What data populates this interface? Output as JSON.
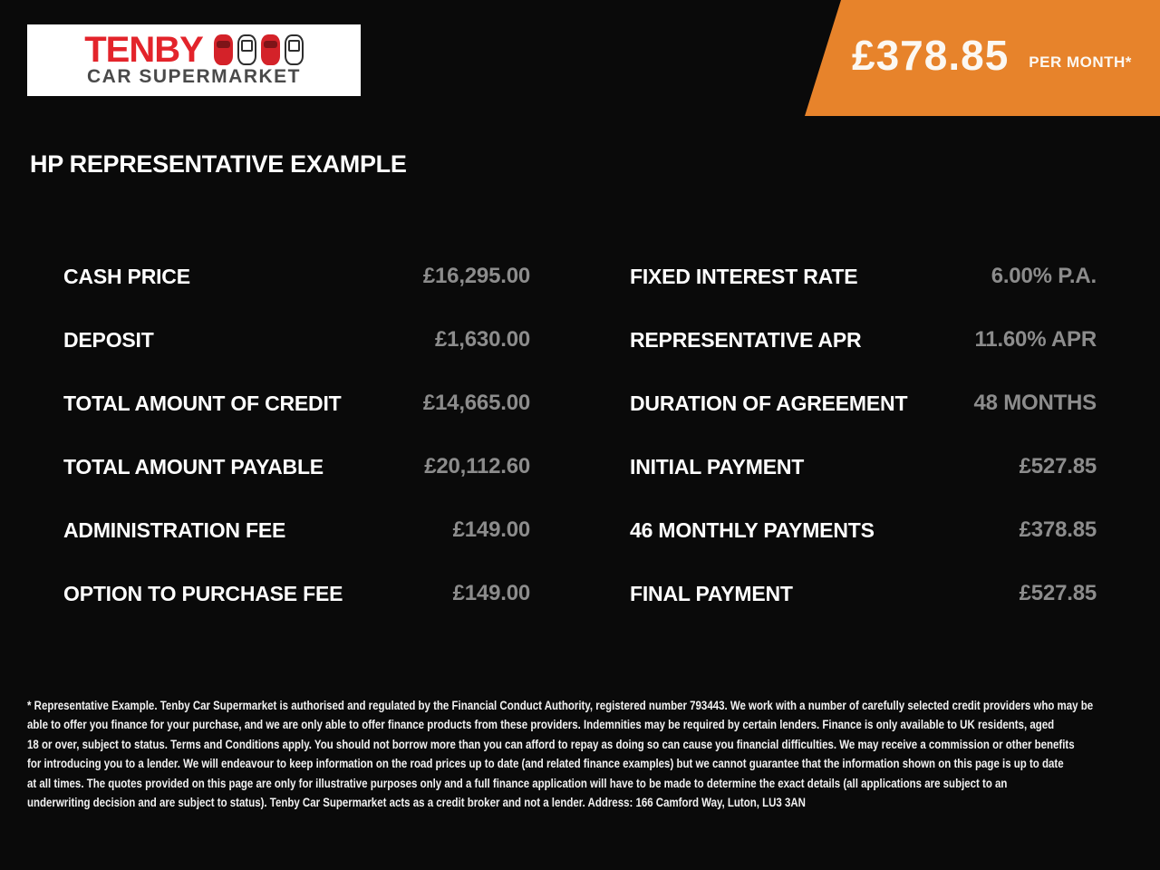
{
  "colors": {
    "page_background": "#0a0a0a",
    "banner_orange": "#e7832b",
    "brand_red": "#e3242b",
    "value_gray": "#8c8c8c",
    "logo_sub_gray": "#4a4a4a"
  },
  "header": {
    "logo": {
      "line1": "TENBY",
      "line2": "CAR SUPERMARKET",
      "car_icons": [
        "red-car-icon",
        "white-car-icon",
        "red-car-icon",
        "white-car-icon"
      ]
    },
    "price_banner": {
      "amount": "£378.85",
      "period": "PER MONTH*"
    }
  },
  "title": "HP REPRESENTATIVE EXAMPLE",
  "finance": {
    "left": [
      {
        "label": "CASH PRICE",
        "value": "£16,295.00"
      },
      {
        "label": "DEPOSIT",
        "value": "£1,630.00"
      },
      {
        "label": "TOTAL AMOUNT OF CREDIT",
        "value": "£14,665.00"
      },
      {
        "label": "TOTAL AMOUNT PAYABLE",
        "value": "£20,112.60"
      },
      {
        "label": "ADMINISTRATION FEE",
        "value": "£149.00"
      },
      {
        "label": "OPTION TO PURCHASE FEE",
        "value": "£149.00"
      }
    ],
    "right": [
      {
        "label": "FIXED INTEREST RATE",
        "value": "6.00% P.A."
      },
      {
        "label": "REPRESENTATIVE APR",
        "value": "11.60% APR"
      },
      {
        "label": "DURATION OF AGREEMENT",
        "value": "48 MONTHS"
      },
      {
        "label": "INITIAL PAYMENT",
        "value": "£527.85"
      },
      {
        "label": "46 MONTHLY PAYMENTS",
        "value": "£378.85"
      },
      {
        "label": "FINAL PAYMENT",
        "value": "£527.85"
      }
    ]
  },
  "disclaimer": {
    "lines": [
      "* Representative Example. Tenby Car Supermarket is authorised and regulated by the Financial Conduct Authority, registered number 793443. We work with a number of carefully selected credit providers who may be",
      "able to offer you finance for your purchase, and we are only able to offer finance products from these providers. Indemnities may be required by certain lenders. Finance is only available to UK residents, aged",
      "18 or over, subject to status. Terms and Conditions apply. You should not borrow more than you can afford to repay as doing so can cause you financial difficulties. We may receive a commission or other benefits",
      "for introducing you to a lender. We will endeavour to keep information on the road prices up to date (and related finance examples) but we cannot guarantee that the information shown on this page is up to date",
      "at all times. The quotes provided on this page are only for illustrative purposes only and a full finance application will have to be made to determine the exact details (all applications are subject to an",
      "underwriting decision and are subject to status). Tenby Car Supermarket acts as a credit broker and not a lender. Address: 166 Camford Way, Luton, LU3 3AN"
    ]
  }
}
